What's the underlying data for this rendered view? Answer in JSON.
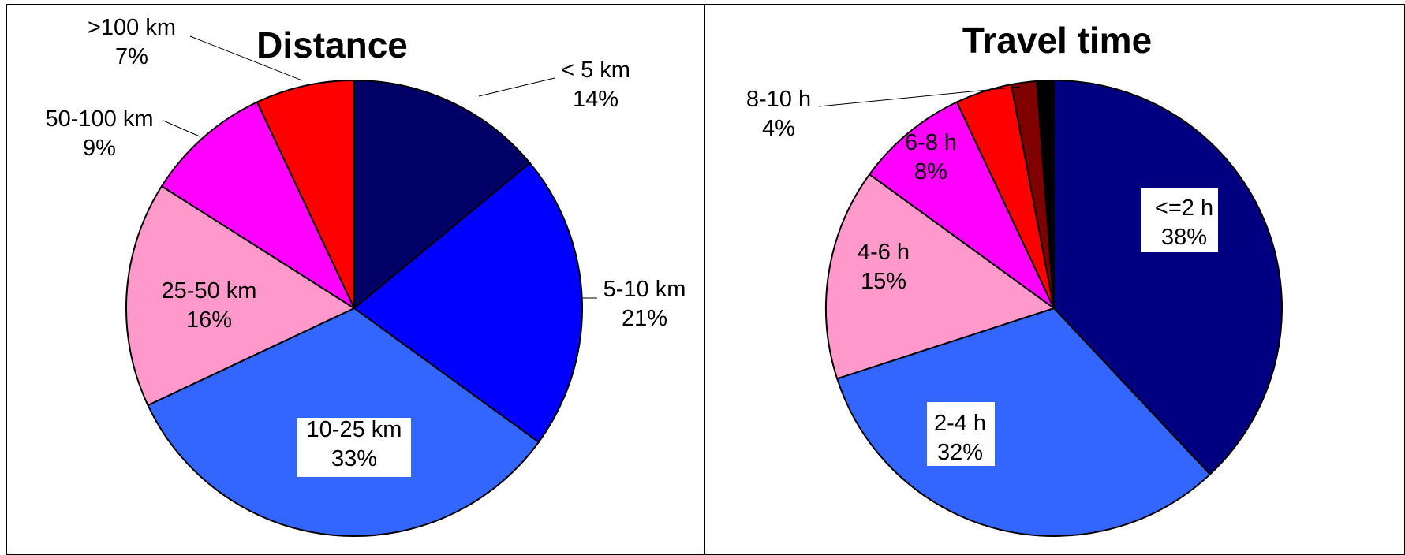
{
  "chart_data": [
    {
      "type": "pie",
      "title": "Distance",
      "colors": [
        "#000066",
        "#0000FF",
        "#3366FF",
        "#FF99CC",
        "#FF00FF",
        "#FF0000"
      ],
      "slices": [
        {
          "label": "< 5 km",
          "value": 14,
          "display": "14%"
        },
        {
          "label": "5-10 km",
          "value": 21,
          "display": "21%"
        },
        {
          "label": "10-25 km",
          "value": 33,
          "display": "33%"
        },
        {
          "label": "25-50 km",
          "value": 16,
          "display": "16%"
        },
        {
          "label": "50-100 km",
          "value": 9,
          "display": "9%"
        },
        {
          "label": ">100 km",
          "value": 7,
          "display": "7%"
        }
      ]
    },
    {
      "type": "pie",
      "title": "Travel time",
      "colors": [
        "#000080",
        "#3366FF",
        "#FF99CC",
        "#FF00FF",
        "#FF0000",
        "#800000",
        "#000000"
      ],
      "slices": [
        {
          "label": "<=2 h",
          "value": 38,
          "display": "38%"
        },
        {
          "label": "2-4 h",
          "value": 32,
          "display": "32%"
        },
        {
          "label": "4-6 h",
          "value": 15,
          "display": "15%"
        },
        {
          "label": "6-8 h",
          "value": 8,
          "display": "8%"
        },
        {
          "label": "8-10 h",
          "value": 4,
          "display": "4%"
        },
        {
          "label": "",
          "value": 1.8,
          "display": ""
        },
        {
          "label": "",
          "value": 1.2,
          "display": ""
        }
      ]
    }
  ]
}
